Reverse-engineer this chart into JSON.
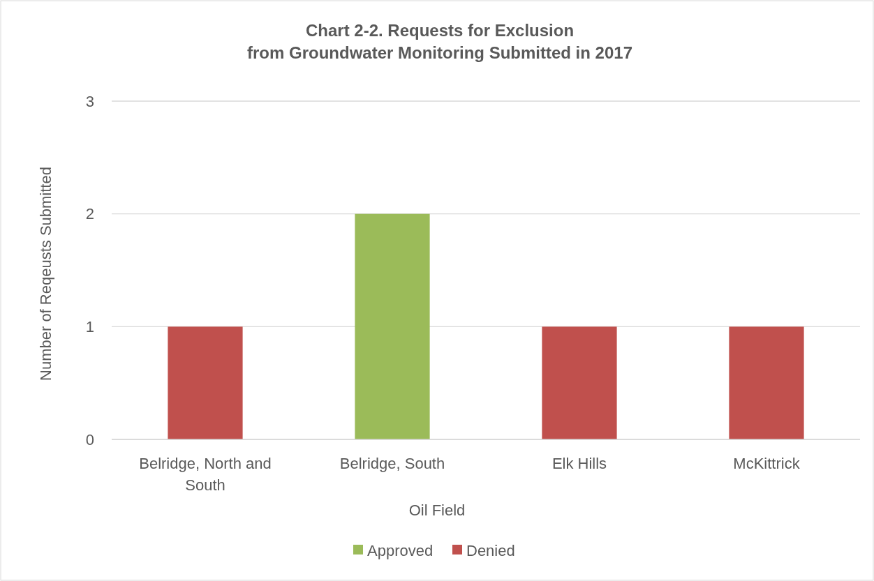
{
  "chart_data": {
    "type": "bar",
    "title": "Chart 2-2.  Requests for Exclusion\nfrom Groundwater Monitoring Submitted in 2017",
    "xlabel": "Oil Field",
    "ylabel": "Number of Reqeusts Submitted",
    "categories": [
      "Belridge, North and South",
      "Belridge, South",
      "Elk Hills",
      "McKittrick"
    ],
    "series": [
      {
        "name": "Approved",
        "color": "#9bbb59",
        "values": [
          null,
          2,
          null,
          null
        ]
      },
      {
        "name": "Denied",
        "color": "#c0504d",
        "values": [
          1,
          null,
          1,
          1
        ]
      }
    ],
    "stacked": true,
    "ylim": [
      0,
      3
    ],
    "yticks": [
      0,
      1,
      2,
      3
    ],
    "grid": "y",
    "legend": "bottom"
  }
}
